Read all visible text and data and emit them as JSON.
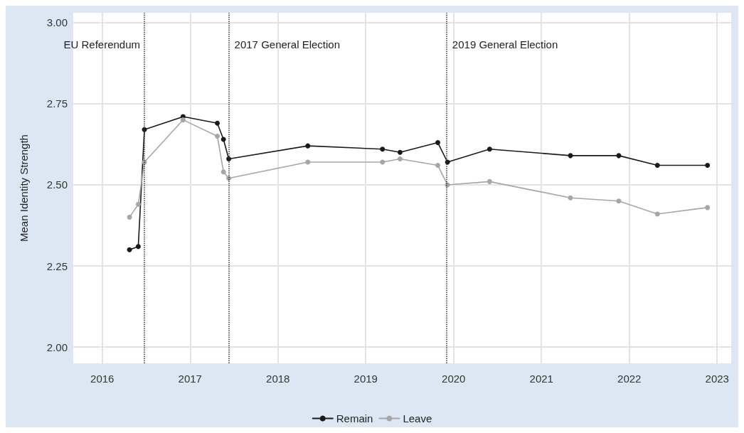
{
  "chart_data": {
    "type": "line",
    "ylabel": "Mean Identity Strength",
    "xlim": [
      2015.67,
      2023.16
    ],
    "xticks": [
      2016,
      2017,
      2018,
      2019,
      2020,
      2021,
      2022,
      2023
    ],
    "ylim": [
      1.95,
      3.03
    ],
    "yticks": [
      {
        "value": 2,
        "label": "2.00"
      },
      {
        "value": 2.25,
        "label": "2.25"
      },
      {
        "value": 2.5,
        "label": "2.50"
      },
      {
        "value": 2.75,
        "label": "2.75"
      },
      {
        "value": 3,
        "label": "3.00"
      }
    ],
    "x": [
      2016.31,
      2016.41,
      2016.48,
      2016.92,
      2017.31,
      2017.38,
      2017.44,
      2018.34,
      2019.19,
      2019.39,
      2019.82,
      2019.93,
      2020.41,
      2021.33,
      2021.88,
      2022.32,
      2022.89
    ],
    "series": [
      {
        "name": "Remain",
        "color": "#1a1a1a",
        "values": [
          2.3,
          2.31,
          2.67,
          2.71,
          2.69,
          2.64,
          2.58,
          2.62,
          2.61,
          2.6,
          2.63,
          2.57,
          2.61,
          2.59,
          2.59,
          2.56,
          2.56
        ]
      },
      {
        "name": "Leave",
        "color": "#a6a6a6",
        "values": [
          2.4,
          2.44,
          2.57,
          2.7,
          2.65,
          2.54,
          2.52,
          2.57,
          2.57,
          2.58,
          2.56,
          2.5,
          2.51,
          2.46,
          2.45,
          2.41,
          2.43
        ]
      }
    ],
    "ref_lines": [
      {
        "axis": "x",
        "value": 2016.48,
        "label": "EU Referendum",
        "color": "#333333",
        "line_style": "dotted"
      },
      {
        "axis": "x",
        "value": 2017.44,
        "label": "2017 General Election",
        "color": "#333333",
        "line_style": "dotted"
      },
      {
        "axis": "x",
        "value": 2019.92,
        "label": "2019 General Election",
        "color": "#333333",
        "line_style": "dotted"
      }
    ],
    "grid": true,
    "legend": "bottom",
    "marker": "circle",
    "line_style": "solid"
  }
}
